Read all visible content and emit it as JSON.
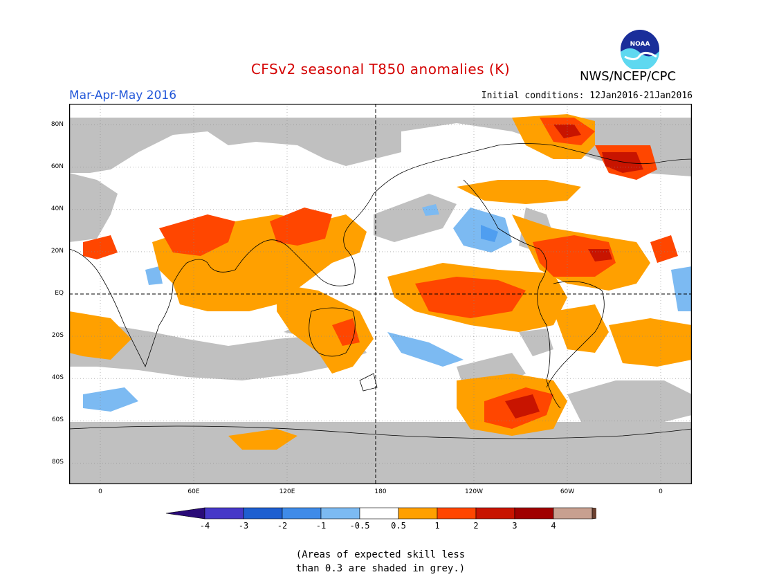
{
  "header": {
    "title": "CFSv2 seasonal T850 anomalies (K)",
    "agency": "NWS/NCEP/CPC",
    "logo_text": "NOAA",
    "season": "Mar-Apr-May 2016",
    "initial_conditions": "Initial conditions: 12Jan2016-21Jan2016"
  },
  "map": {
    "projection": "equirectangular",
    "lon_range": [
      -20,
      380
    ],
    "lat_range": [
      -90,
      90
    ],
    "lat_ticks": [
      {
        "label": "80N",
        "lat": 80
      },
      {
        "label": "60N",
        "lat": 60
      },
      {
        "label": "40N",
        "lat": 40
      },
      {
        "label": "20N",
        "lat": 20
      },
      {
        "label": "EQ",
        "lat": 0
      },
      {
        "label": "20S",
        "lat": -20
      },
      {
        "label": "40S",
        "lat": -40
      },
      {
        "label": "60S",
        "lat": -60
      },
      {
        "label": "80S",
        "lat": -80
      }
    ],
    "lon_ticks": [
      {
        "label": "0",
        "lon": 0
      },
      {
        "label": "60E",
        "lon": 60
      },
      {
        "label": "120E",
        "lon": 120
      },
      {
        "label": "180",
        "lon": 180
      },
      {
        "label": "120W",
        "lon": 240
      },
      {
        "label": "60W",
        "lon": 300
      },
      {
        "label": "0",
        "lon": 360
      }
    ],
    "dashed_reference_lines": [
      "Equator",
      "180 meridian"
    ],
    "colors": {
      "low_skill_grey": "#c0c0c0",
      "neg_4": "#3c10a0",
      "neg_3": "#4a40d0",
      "neg_2": "#2e6ed8",
      "neg_1": "#4f9ef0",
      "neg_05": "#7ec0f6",
      "neutral": "#ffffff",
      "pos_05": "#ffa000",
      "pos_1": "#ff4600",
      "pos_2": "#c81400",
      "pos_3": "#a00000",
      "pos_4": "#c09080"
    }
  },
  "colorbar": {
    "labels": [
      "-4",
      "-3",
      "-2",
      "-1",
      "-0.5",
      "0.5",
      "1",
      "2",
      "3",
      "4"
    ],
    "colors": [
      "#2a0b78",
      "#4638c8",
      "#1e5fd0",
      "#3f8be8",
      "#7cbaf2",
      "#ffffff",
      "#ffa000",
      "#ff4600",
      "#c81400",
      "#a00000",
      "#c8a090",
      "#6b4030"
    ]
  },
  "caption": {
    "line1": "(Areas of expected skill less",
    "line2": "than 0.3 are shaded in grey.)"
  }
}
